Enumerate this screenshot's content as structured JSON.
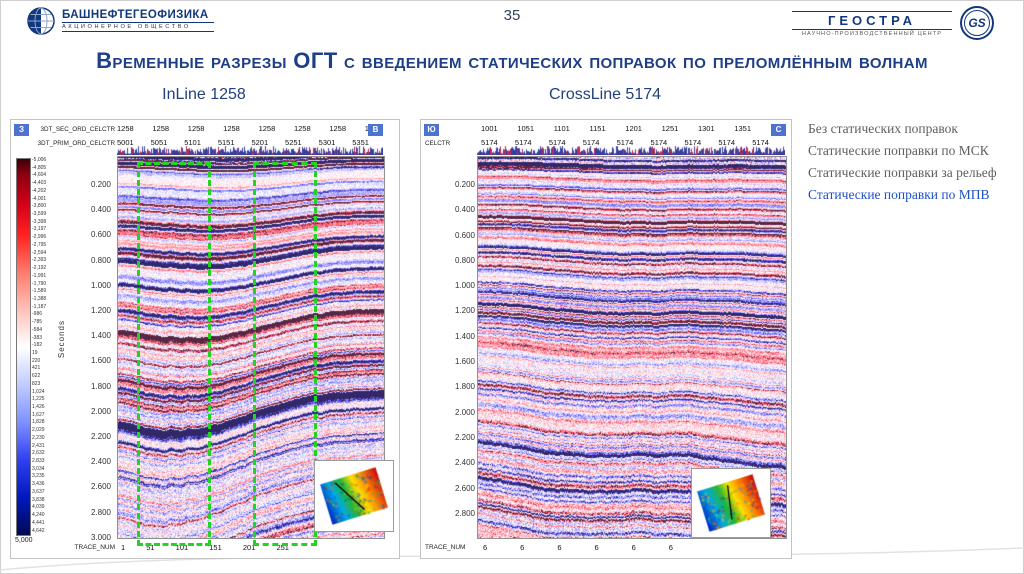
{
  "page": {
    "number": "35",
    "title": "Временные разрезы ОГТ с введением статических поправок по преломлённым волнам"
  },
  "header": {
    "left_logo": {
      "company": "БАШНЕФТЕГЕОФИЗИКА",
      "subtitle": "АКЦИОНЕРНОЕ ОБЩЕСТВО"
    },
    "right_logo": {
      "name": "ГЕОСТРА",
      "subtitle": "НАУЧНО-ПРОИЗВОДСТВЕННЫЙ ЦЕНТР",
      "badge": "GS"
    }
  },
  "legend": {
    "items": [
      {
        "label": "Без статических поправок",
        "active": false
      },
      {
        "label": "Статические поправки по МСК",
        "active": false
      },
      {
        "label": "Статические поправки за рельеф",
        "active": false
      },
      {
        "label": "Статические поправки по МПВ",
        "active": true
      }
    ],
    "active_color": "#2050c8",
    "inactive_color": "#5f5f5f"
  },
  "left_section": {
    "title": "InLine 1258",
    "compass_left": "З",
    "compass_right": "В",
    "header_row1_label": "3DT_SEC_ORD_CELCTR",
    "header_row1_values": [
      "1258",
      "1258",
      "1258",
      "1258",
      "1258",
      "1258",
      "1258",
      "1"
    ],
    "header_row2_label": "3DT_PRIM_ORD_CELCTR",
    "header_row2_values": [
      "5001",
      "5051",
      "5101",
      "5151",
      "5201",
      "5251",
      "5301",
      "5351"
    ],
    "time_axis_label": "Seconds",
    "time_ticks": [
      "0.200",
      "0.400",
      "0.600",
      "0.800",
      "1.000",
      "1.200",
      "1.400",
      "1.600",
      "1.800",
      "2.000",
      "2.200",
      "2.400",
      "2.600",
      "2.800",
      "3.000"
    ],
    "footer_label": "TRACE_NUM",
    "footer_values": [
      "1",
      "51",
      "101",
      "151",
      "201",
      "251"
    ],
    "colorbar_ticks": [
      "-5,006",
      "-4,805",
      "-4,604",
      "-4,403",
      "-4,202",
      "-4,001",
      "-3,800",
      "-3,599",
      "-3,398",
      "-3,197",
      "-2,996",
      "-2,795",
      "-2,594",
      "-2,393",
      "-2,192",
      "-1,991",
      "-1,790",
      "-1,589",
      "-1,388",
      "-1,187",
      "-986",
      "-785",
      "-584",
      "-383",
      "-182",
      "19",
      "220",
      "421",
      "622",
      "823",
      "1,024",
      "1,225",
      "1,426",
      "1,627",
      "1,828",
      "2,029",
      "2,230",
      "2,431",
      "2,632",
      "2,833",
      "3,034",
      "3,235",
      "3,436",
      "3,637",
      "3,838",
      "4,039",
      "4,240",
      "4,441",
      "4,642"
    ],
    "colorbar_bottom": "5,000",
    "highlight_color": "#22d322"
  },
  "right_section": {
    "title": "CrossLine 5174",
    "compass_left": "Ю",
    "compass_right": "С",
    "header_row1_values": [
      "1001",
      "1051",
      "1101",
      "1151",
      "1201",
      "1251",
      "1301",
      "1351"
    ],
    "header_row2_label": "CELCTR",
    "header_row2_values": [
      "5174",
      "5174",
      "5174",
      "5174",
      "5174",
      "5174",
      "5174",
      "5174",
      "5174"
    ],
    "time_ticks": [
      "0.200",
      "0.400",
      "0.600",
      "0.800",
      "1.000",
      "1.200",
      "1.400",
      "1.600",
      "1.800",
      "2.000",
      "2.200",
      "2.400",
      "2.600",
      "2.800"
    ],
    "footer_label": "TRACE_NUM",
    "footer_values": [
      "6",
      "6",
      "6",
      "6",
      "6",
      "6"
    ]
  }
}
